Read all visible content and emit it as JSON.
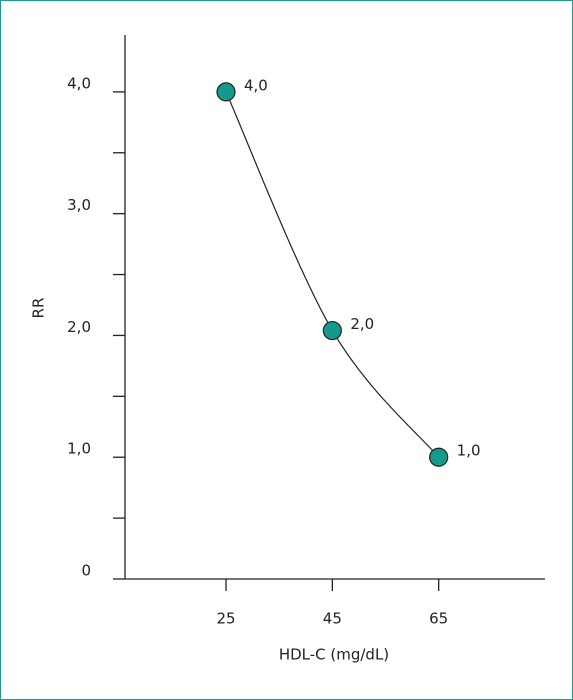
{
  "chart_data": {
    "type": "line",
    "x_label": "HDL-C (mg/dL)",
    "y_label": "RR",
    "x": [
      25,
      45,
      65
    ],
    "series": [
      {
        "color": "#14998a",
        "values": [
          4.0,
          2.04,
          1.0
        ],
        "value_labels": [
          "4,0",
          "2,0",
          "1,0"
        ]
      }
    ],
    "xlim": [
      6,
      85
    ],
    "ylim": [
      0,
      4.5
    ],
    "xticks": [
      25,
      45,
      65
    ],
    "yticks": [
      0,
      {
        "value": 1,
        "label": "1,0"
      },
      {
        "value": 2,
        "label": "2,0"
      },
      {
        "value": 3,
        "label": "3,0"
      },
      {
        "value": 4,
        "label": "4,0"
      }
    ],
    "yticks_minor": [
      0.5,
      1.5,
      2.5,
      3.5
    ],
    "grid": false
  }
}
